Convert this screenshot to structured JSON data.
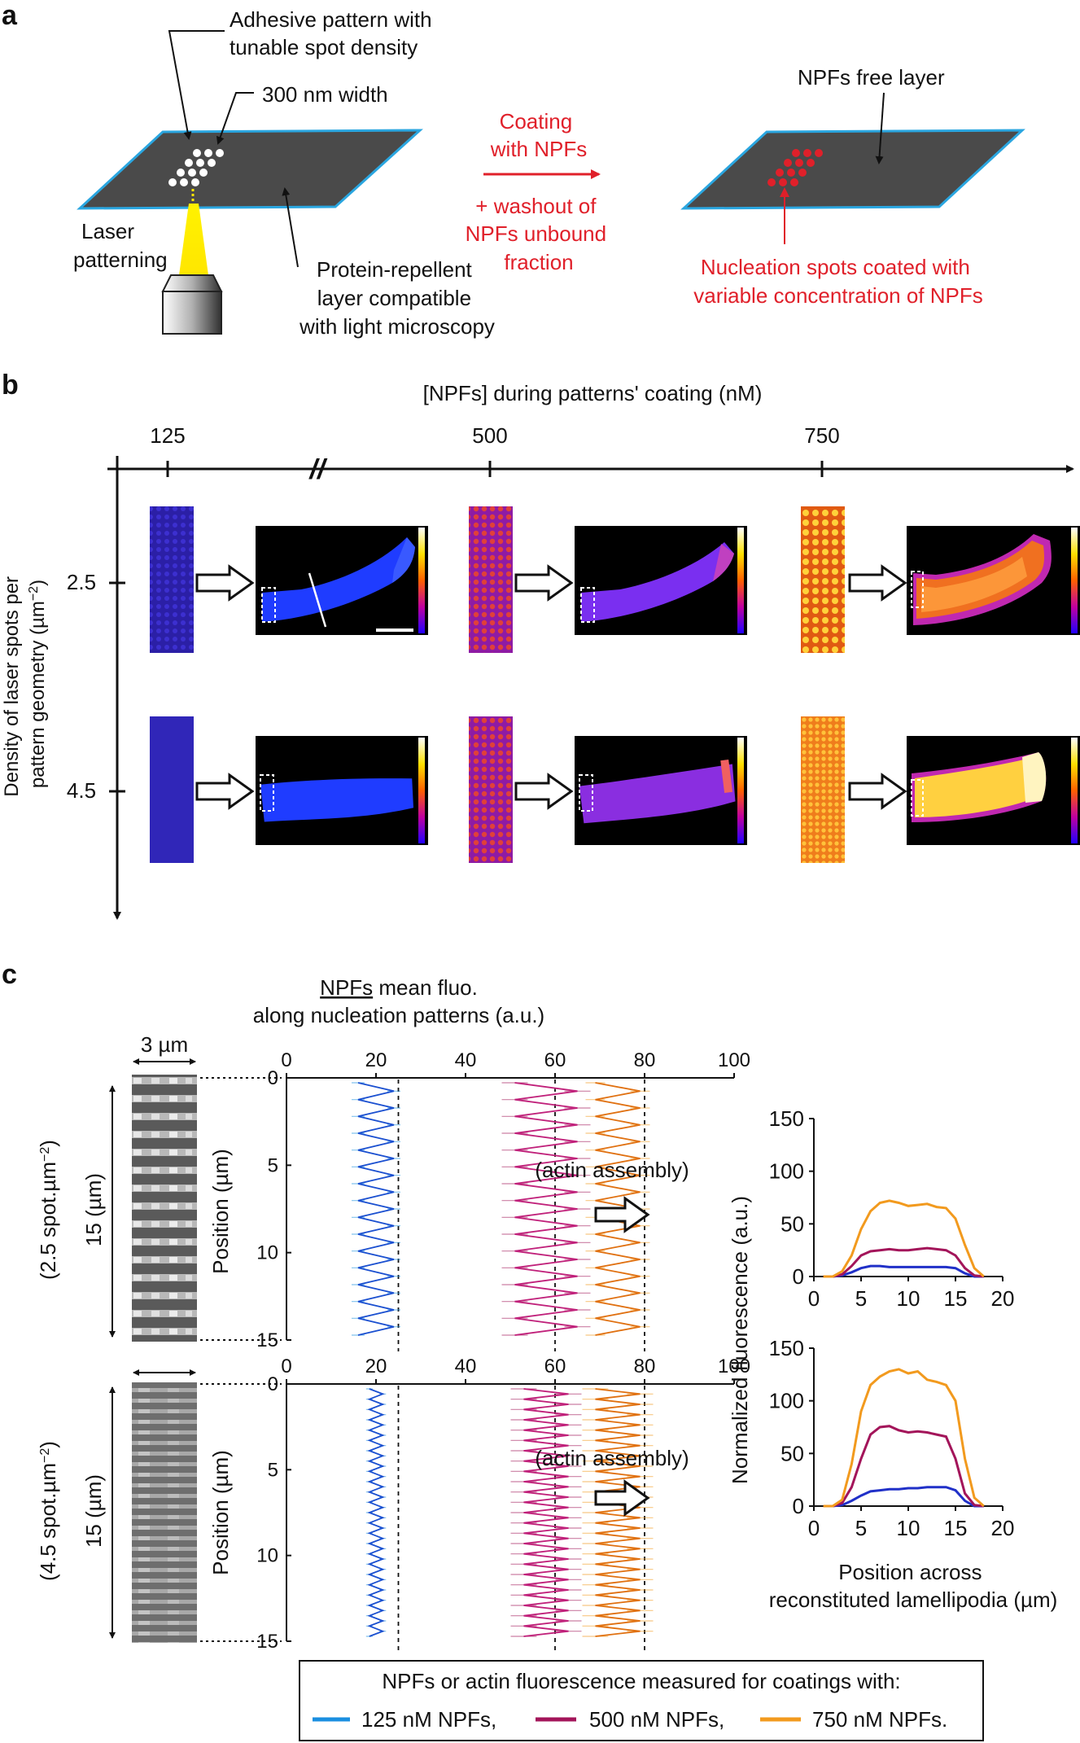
{
  "panel_a": {
    "letter": "a",
    "adhesive_label": [
      "Adhesive pattern with",
      "tunable spot density"
    ],
    "width_label": "300 nm width",
    "laser_label": [
      "Laser",
      "patterning"
    ],
    "repellent_label": [
      "Protein-repellent",
      "layer compatible",
      "with light microscopy"
    ],
    "coating_label": [
      "Coating",
      "with NPFs"
    ],
    "washout_label": [
      "+ washout of",
      "NPFs unbound",
      "fraction"
    ],
    "free_layer_label": "NPFs free layer",
    "spots_label": [
      "Nucleation spots coated with",
      "variable concentration of NPFs"
    ]
  },
  "panel_b": {
    "letter": "b",
    "x_title": "[NPFs] during patterns' coating (nM)",
    "x_ticks": [
      "125",
      "500",
      "750"
    ],
    "y_title": [
      "Density of laser spots per",
      "pattern geometry (µm",
      "−2",
      ")"
    ],
    "y_ticks": [
      "2.5",
      "4.5"
    ],
    "axis_break": "//"
  },
  "panel_c": {
    "letter": "c",
    "top_title_underlined": "NPFs",
    "top_title_rest": " mean fluo.",
    "top_title_line2": "along nucleation patterns (a.u.)",
    "scale_label": "3 µm",
    "height_label": "15 (µm)",
    "density_labels": [
      "(2.5 spot.µm",
      "(4.5 spot.µm"
    ],
    "density_sup": "−2",
    "density_close": ")",
    "x_ticks": [
      "0",
      "20",
      "40",
      "60",
      "80",
      "100"
    ],
    "y_ticks": [
      "0",
      "5",
      "10",
      "15"
    ],
    "y_label": "Position (µm)",
    "assembly_label": "(actin assembly)",
    "right_ylabel": "Normalized  fluorescence (a.u.)",
    "right_yticks": [
      "0",
      "50",
      "100",
      "150"
    ],
    "right_xticks": [
      "0",
      "5",
      "10",
      "15",
      "20"
    ],
    "right_xlabel": [
      "Position across",
      "reconstituted lamellipodia (µm)"
    ]
  },
  "legend": {
    "title": "NPFs or actin fluorescence measured for coatings with:",
    "items": [
      "125 nM NPFs,",
      "500 nM NPFs,",
      "750 nM NPFs."
    ],
    "colors": [
      "#1a8fe0",
      "#a3155a",
      "#f29a1e"
    ]
  },
  "chart_data": [
    {
      "type": "line",
      "xlabel": "Position across reconstituted lamellipodia (µm)",
      "ylabel": "Normalized  fluorescence (a.u.)",
      "xlim": [
        0,
        20
      ],
      "ylim": [
        0,
        150
      ],
      "density": "2.5 spot.µm-2",
      "x": [
        1,
        2,
        3,
        4,
        5,
        6,
        7,
        8,
        9,
        10,
        11,
        12,
        13,
        14,
        15,
        16,
        17,
        18
      ],
      "series": [
        {
          "name": "125 nM NPFs",
          "color": "#2030c8",
          "values": [
            0,
            0,
            1,
            4,
            8,
            10,
            10,
            9,
            9,
            9,
            9,
            9,
            9,
            9,
            8,
            3,
            0,
            0
          ]
        },
        {
          "name": "500 nM NPFs",
          "color": "#a3155a",
          "values": [
            0,
            0,
            2,
            10,
            20,
            24,
            25,
            26,
            25,
            25,
            26,
            27,
            26,
            25,
            20,
            8,
            1,
            0
          ]
        },
        {
          "name": "750 nM NPFs",
          "color": "#f29a1e",
          "values": [
            0,
            0,
            5,
            20,
            45,
            62,
            70,
            72,
            70,
            67,
            68,
            69,
            66,
            65,
            55,
            30,
            8,
            0
          ]
        }
      ]
    },
    {
      "type": "line",
      "xlabel": "Position across reconstituted lamellipodia (µm)",
      "ylabel": "Normalized  fluorescence (a.u.)",
      "xlim": [
        0,
        20
      ],
      "ylim": [
        0,
        150
      ],
      "density": "4.5 spot.µm-2",
      "x": [
        1,
        2,
        3,
        4,
        5,
        6,
        7,
        8,
        9,
        10,
        11,
        12,
        13,
        14,
        15,
        16,
        17,
        18
      ],
      "series": [
        {
          "name": "125 nM NPFs",
          "color": "#2030c8",
          "values": [
            0,
            0,
            1,
            5,
            10,
            14,
            15,
            16,
            16,
            17,
            17,
            18,
            18,
            18,
            15,
            5,
            0,
            0
          ]
        },
        {
          "name": "500 nM NPFs",
          "color": "#a3155a",
          "values": [
            0,
            0,
            3,
            18,
            45,
            68,
            75,
            76,
            72,
            70,
            71,
            70,
            68,
            66,
            45,
            12,
            1,
            0
          ]
        },
        {
          "name": "750 nM NPFs",
          "color": "#f29a1e",
          "values": [
            0,
            0,
            6,
            40,
            90,
            115,
            123,
            128,
            130,
            126,
            128,
            120,
            118,
            115,
            100,
            45,
            8,
            0
          ]
        }
      ]
    }
  ]
}
